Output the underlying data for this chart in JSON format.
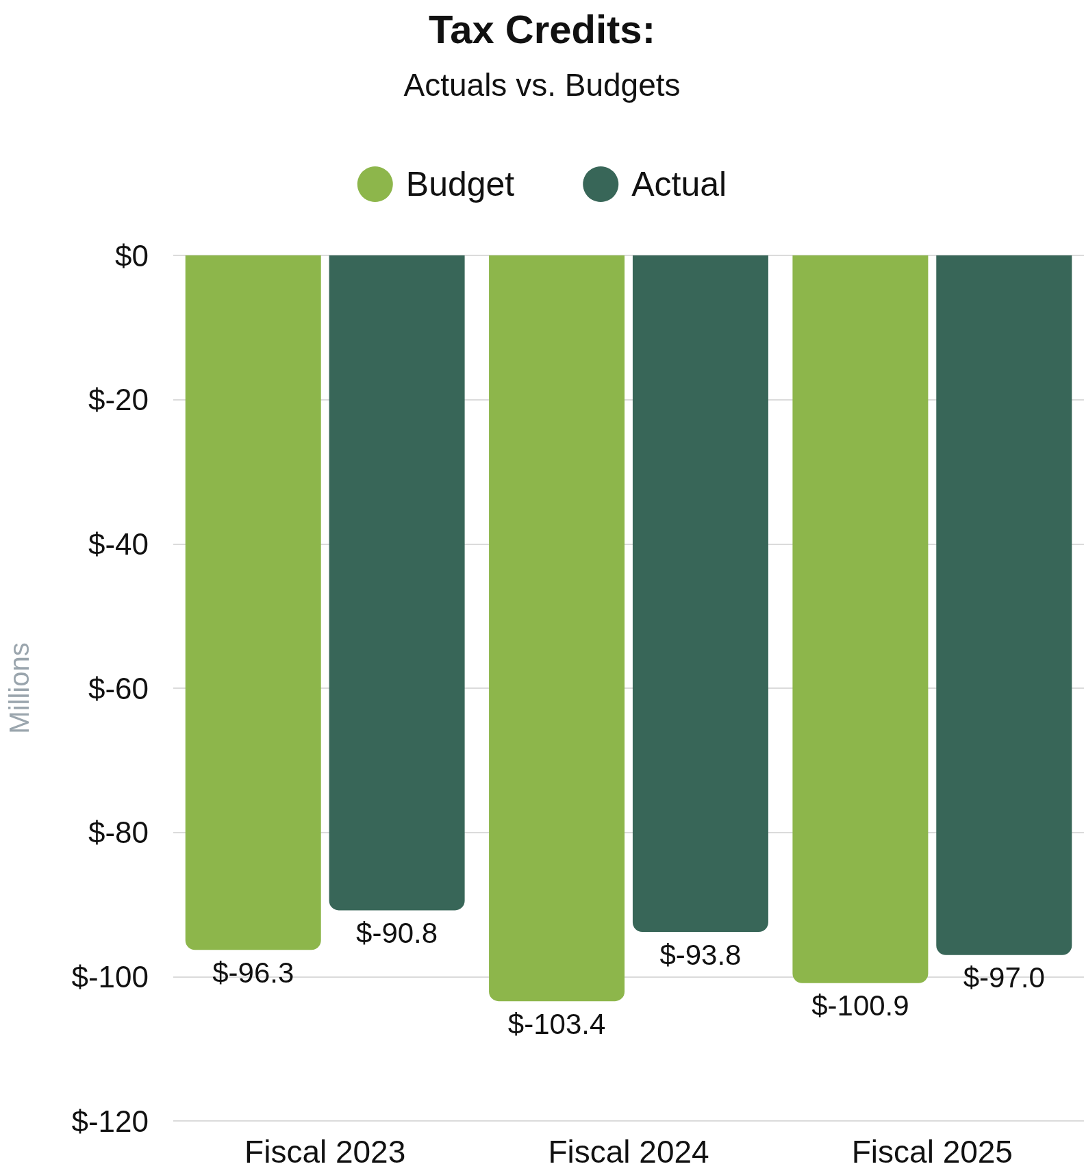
{
  "chart_data": {
    "type": "bar",
    "title": "Tax Credits:",
    "subtitle": "Actuals vs. Budgets",
    "ylabel": "Millions",
    "categories": [
      "Fiscal 2023",
      "Fiscal 2024",
      "Fiscal 2025"
    ],
    "series": [
      {
        "name": "Budget",
        "color": "#8db64b",
        "values": [
          -96.3,
          -103.4,
          -100.9
        ],
        "value_labels": [
          "$-96.3",
          "$-103.4",
          "$-100.9"
        ]
      },
      {
        "name": "Actual",
        "color": "#386658",
        "values": [
          -90.8,
          -93.8,
          -97.0
        ],
        "value_labels": [
          "$-90.8",
          "$-93.8",
          "$-97.0"
        ]
      }
    ],
    "ylim": [
      -120,
      0
    ],
    "yticks": [
      {
        "value": 0,
        "label": "$0"
      },
      {
        "value": -20,
        "label": "$-20"
      },
      {
        "value": -40,
        "label": "$-40"
      },
      {
        "value": -60,
        "label": "$-60"
      },
      {
        "value": -80,
        "label": "$-80"
      },
      {
        "value": -100,
        "label": "$-100"
      },
      {
        "value": -120,
        "label": "$-120"
      }
    ],
    "grid": "y",
    "legend": "top"
  }
}
